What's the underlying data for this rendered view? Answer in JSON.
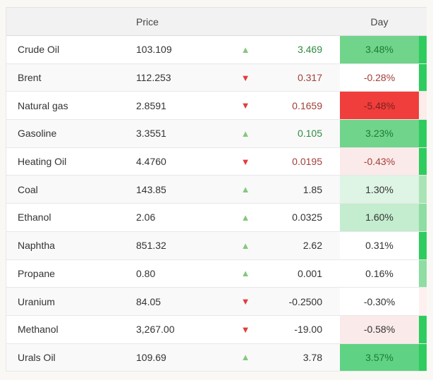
{
  "page": {
    "background": "#faf8f4"
  },
  "header": {
    "name_label": "",
    "price_label": "Price",
    "day_label": "Day"
  },
  "icons": {
    "up_arrow": "▲",
    "down_arrow": "▼"
  },
  "colors": {
    "header_bg": "#f2f2f2",
    "header_text": "#444444",
    "row_bg_odd": "#ffffff",
    "row_bg_even": "#f9f9f9",
    "row_border": "#e8e8e8",
    "text": "#333333",
    "up_arrow": "#84c87c",
    "down_arrow": "#e23c3c"
  },
  "rows": [
    {
      "name": "Crude Oil",
      "price": "103.109",
      "direction": "up",
      "change": "3.469",
      "change_color": "#2e8b3f",
      "day": "3.48%",
      "day_text": "#1e7a33",
      "day_bg": "#70d48b",
      "strip": "#2ecc5e"
    },
    {
      "name": "Brent",
      "price": "112.253",
      "direction": "down",
      "change": "0.317",
      "change_color": "#a23f38",
      "day": "-0.28%",
      "day_text": "#a23f38",
      "day_bg": "#ffffff",
      "strip": "#2ecc5e"
    },
    {
      "name": "Natural gas",
      "price": "2.8591",
      "direction": "down",
      "change": "0.1659",
      "change_color": "#a23f38",
      "day": "-5.48%",
      "day_text": "#7c1f1d",
      "day_bg": "#ef3e3b",
      "strip": "#fcecea"
    },
    {
      "name": "Gasoline",
      "price": "3.3551",
      "direction": "up",
      "change": "0.105",
      "change_color": "#2e8b3f",
      "day": "3.23%",
      "day_text": "#1e7a33",
      "day_bg": "#70d48b",
      "strip": "#2ecc5e"
    },
    {
      "name": "Heating Oil",
      "price": "4.4760",
      "direction": "down",
      "change": "0.0195",
      "change_color": "#a23f38",
      "day": "-0.43%",
      "day_text": "#a23f38",
      "day_bg": "#fbeaea",
      "strip": "#2ecc5e"
    },
    {
      "name": "Coal",
      "price": "143.85",
      "direction": "up",
      "change": "1.85",
      "change_color": "#333333",
      "day": "1.30%",
      "day_text": "#333333",
      "day_bg": "#def4e4",
      "strip": "#a9e4b6"
    },
    {
      "name": "Ethanol",
      "price": "2.06",
      "direction": "up",
      "change": "0.0325",
      "change_color": "#333333",
      "day": "1.60%",
      "day_text": "#333333",
      "day_bg": "#c4ecce",
      "strip": "#8edda2"
    },
    {
      "name": "Naphtha",
      "price": "851.32",
      "direction": "up",
      "change": "2.62",
      "change_color": "#333333",
      "day": "0.31%",
      "day_text": "#333333",
      "day_bg": "#ffffff",
      "strip": "#2ecc5e"
    },
    {
      "name": "Propane",
      "price": "0.80",
      "direction": "up",
      "change": "0.001",
      "change_color": "#333333",
      "day": "0.16%",
      "day_text": "#333333",
      "day_bg": "#ffffff",
      "strip": "#8edda2"
    },
    {
      "name": "Uranium",
      "price": "84.05",
      "direction": "down",
      "change": "-0.2500",
      "change_color": "#333333",
      "day": "-0.30%",
      "day_text": "#333333",
      "day_bg": "#ffffff",
      "strip": "#fdf0ef"
    },
    {
      "name": "Methanol",
      "price": "3,267.00",
      "direction": "down",
      "change": "-19.00",
      "change_color": "#333333",
      "day": "-0.58%",
      "day_text": "#333333",
      "day_bg": "#fbeaea",
      "strip": "#2ecc5e"
    },
    {
      "name": "Urals Oil",
      "price": "109.69",
      "direction": "up",
      "change": "3.78",
      "change_color": "#333333",
      "day": "3.57%",
      "day_text": "#1e7a33",
      "day_bg": "#5fd283",
      "strip": "#2ecc5e"
    }
  ]
}
